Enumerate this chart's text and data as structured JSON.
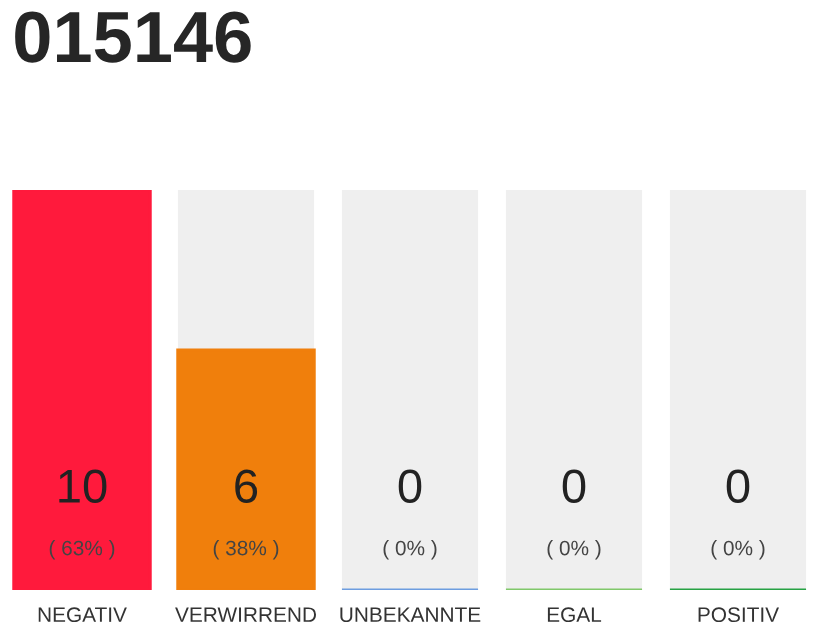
{
  "chart_data": {
    "type": "bar",
    "title": "015146",
    "categories": [
      "NEGATIV",
      "VERWIRREND",
      "UNBEKANNTE",
      "EGAL",
      "POSITIV"
    ],
    "values": [
      10,
      6,
      0,
      0,
      0
    ],
    "colors": [
      "#ff1a3c",
      "#f07f0c",
      "#6d9de0",
      "#80c86a",
      "#27a244"
    ],
    "value_labels": [
      "10",
      "6",
      "0",
      "0",
      "0"
    ],
    "annotations": [
      "( 63% )",
      "( 38% )",
      "( 0% )",
      "( 0% )",
      "( 0% )"
    ]
  }
}
